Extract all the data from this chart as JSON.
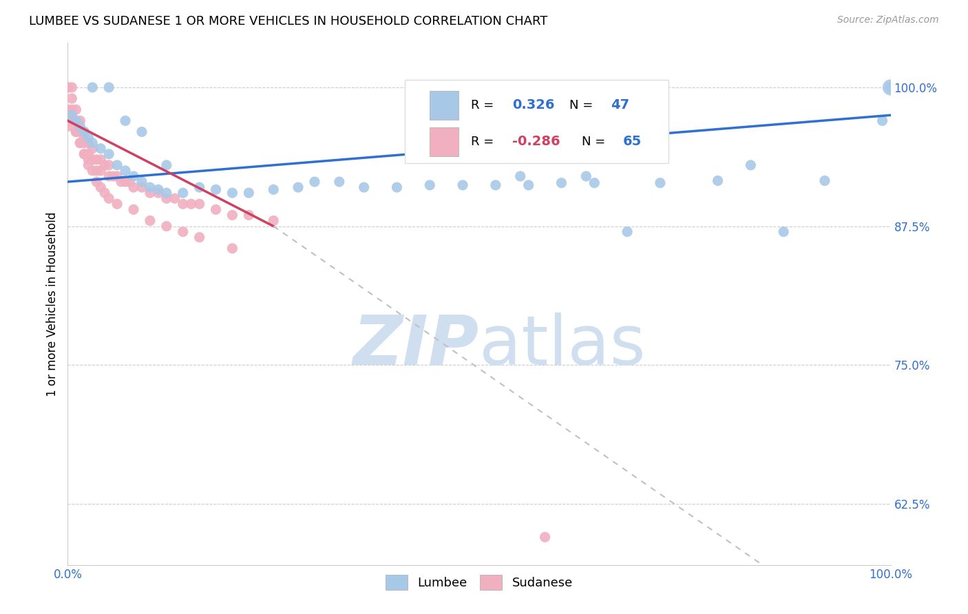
{
  "title": "LUMBEE VS SUDANESE 1 OR MORE VEHICLES IN HOUSEHOLD CORRELATION CHART",
  "source": "Source: ZipAtlas.com",
  "ylabel": "1 or more Vehicles in Household",
  "xlim": [
    0.0,
    1.0
  ],
  "ylim": [
    0.57,
    1.04
  ],
  "y_ticks": [
    0.625,
    0.75,
    0.875,
    1.0
  ],
  "y_tick_labels": [
    "62.5%",
    "75.0%",
    "87.5%",
    "100.0%"
  ],
  "x_ticks": [
    0.0,
    0.1,
    0.2,
    0.3,
    0.4,
    0.5,
    0.6,
    0.7,
    0.8,
    0.9,
    1.0
  ],
  "x_tick_labels": [
    "0.0%",
    "",
    "",
    "",
    "",
    "",
    "",
    "",
    "",
    "",
    "100.0%"
  ],
  "lumbee_color": "#a8c8e8",
  "sudanese_color": "#f0b0c0",
  "lumbee_line_color": "#3070d0",
  "sudanese_line_color": "#d04060",
  "sudanese_line_color_dash": "#c0c0c0",
  "watermark_zip": "ZIP",
  "watermark_atlas": "atlas",
  "watermark_color": "#d0dff0",
  "lumbee_R": "0.326",
  "lumbee_N": "47",
  "sudanese_R": "-0.286",
  "sudanese_N": "65",
  "lumbee_x": [
    0.005,
    0.01,
    0.015,
    0.02,
    0.025,
    0.03,
    0.04,
    0.05,
    0.06,
    0.07,
    0.08,
    0.09,
    0.1,
    0.11,
    0.12,
    0.14,
    0.16,
    0.18,
    0.2,
    0.22,
    0.25,
    0.28,
    0.3,
    0.33,
    0.36,
    0.4,
    0.44,
    0.48,
    0.52,
    0.56,
    0.6,
    0.64,
    0.68,
    0.72,
    0.79,
    0.83,
    0.87,
    0.92,
    0.99,
    1.0,
    0.03,
    0.05,
    0.07,
    0.09,
    0.12,
    0.55,
    0.63
  ],
  "lumbee_y": [
    0.975,
    0.97,
    0.965,
    0.96,
    0.955,
    0.95,
    0.945,
    0.94,
    0.93,
    0.925,
    0.92,
    0.915,
    0.91,
    0.908,
    0.905,
    0.905,
    0.91,
    0.908,
    0.905,
    0.905,
    0.908,
    0.91,
    0.915,
    0.915,
    0.91,
    0.91,
    0.912,
    0.912,
    0.912,
    0.912,
    0.914,
    0.914,
    0.87,
    0.914,
    0.916,
    0.93,
    0.87,
    0.916,
    0.97,
    1.0,
    1.0,
    1.0,
    0.97,
    0.96,
    0.93,
    0.92,
    0.92
  ],
  "sudanese_x": [
    0.0,
    0.0,
    0.0,
    0.005,
    0.005,
    0.005,
    0.005,
    0.01,
    0.01,
    0.01,
    0.015,
    0.015,
    0.015,
    0.02,
    0.02,
    0.02,
    0.02,
    0.025,
    0.025,
    0.025,
    0.03,
    0.03,
    0.035,
    0.035,
    0.04,
    0.04,
    0.045,
    0.05,
    0.05,
    0.055,
    0.06,
    0.065,
    0.07,
    0.075,
    0.08,
    0.09,
    0.1,
    0.11,
    0.12,
    0.13,
    0.14,
    0.15,
    0.16,
    0.18,
    0.2,
    0.22,
    0.25,
    0.005,
    0.01,
    0.015,
    0.02,
    0.025,
    0.03,
    0.035,
    0.04,
    0.045,
    0.05,
    0.06,
    0.08,
    0.1,
    0.12,
    0.14,
    0.16,
    0.2,
    0.58
  ],
  "sudanese_y": [
    1.0,
    1.0,
    0.98,
    1.0,
    0.99,
    0.98,
    0.97,
    0.98,
    0.97,
    0.96,
    0.97,
    0.96,
    0.95,
    0.96,
    0.955,
    0.95,
    0.94,
    0.95,
    0.94,
    0.935,
    0.945,
    0.935,
    0.935,
    0.925,
    0.935,
    0.925,
    0.93,
    0.93,
    0.92,
    0.92,
    0.92,
    0.915,
    0.915,
    0.915,
    0.91,
    0.91,
    0.905,
    0.905,
    0.9,
    0.9,
    0.895,
    0.895,
    0.895,
    0.89,
    0.885,
    0.885,
    0.88,
    0.97,
    0.96,
    0.95,
    0.94,
    0.93,
    0.925,
    0.915,
    0.91,
    0.905,
    0.9,
    0.895,
    0.89,
    0.88,
    0.875,
    0.87,
    0.865,
    0.855,
    0.595
  ],
  "sudanese_large_x": [
    0.0
  ],
  "sudanese_large_y": [
    0.97
  ],
  "lumbee_large_x": [
    1.0
  ],
  "lumbee_large_y": [
    1.0
  ]
}
